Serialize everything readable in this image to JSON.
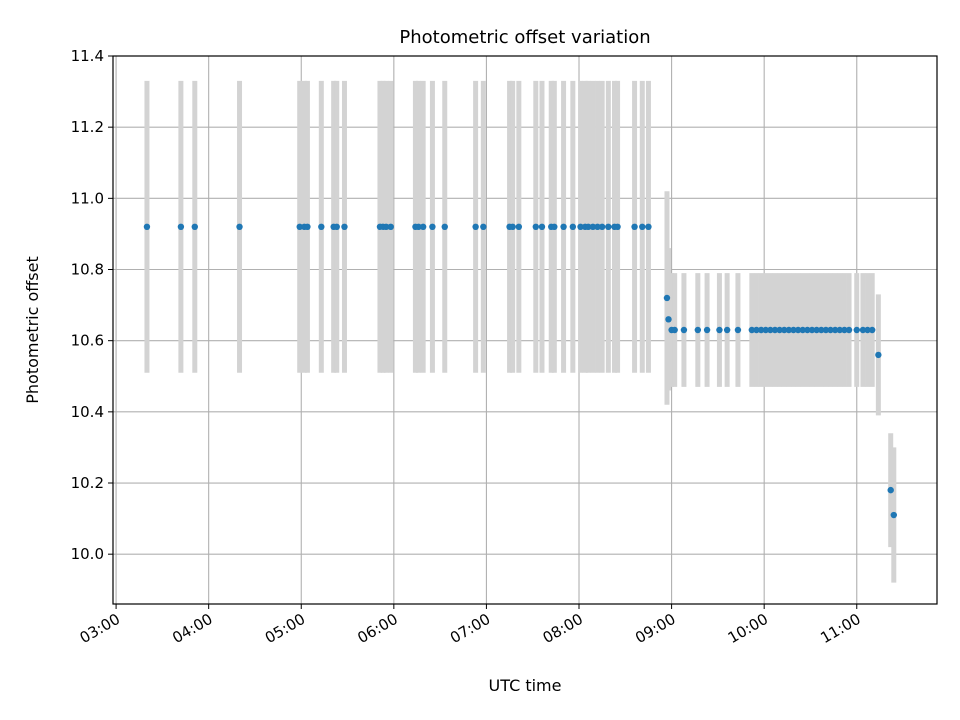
{
  "chart_data": {
    "type": "scatter",
    "title": "Photometric offset variation",
    "xlabel": "UTC time",
    "ylabel": "Photometric offset",
    "x_unit": "UTC time (HH:MM)",
    "xlim": [
      "02:58",
      "11:52"
    ],
    "ylim": [
      9.86,
      11.4
    ],
    "grid": true,
    "colors": {
      "points": "#1f77b4",
      "errorbars": "#d3d3d3",
      "grid": "#b0b0b0"
    },
    "x_ticks": [
      "03:00",
      "04:00",
      "05:00",
      "06:00",
      "07:00",
      "08:00",
      "09:00",
      "10:00",
      "11:00"
    ],
    "y_ticks": [
      "10.0",
      "10.2",
      "10.4",
      "10.6",
      "10.8",
      "11.0",
      "11.2",
      "11.4"
    ],
    "series": [
      {
        "x": [
          "03:20",
          "03:42",
          "03:51",
          "04:20",
          "04:59",
          "05:02",
          "05:04",
          "05:13",
          "05:21",
          "05:23",
          "05:28",
          "05:51",
          "05:53",
          "05:55",
          "05:58",
          "06:14",
          "06:16",
          "06:19",
          "06:25",
          "06:33",
          "06:53",
          "06:58",
          "07:15",
          "07:17",
          "07:21",
          "07:32",
          "07:36",
          "07:42",
          "07:44",
          "07:50",
          "07:56",
          "08:01",
          "08:04",
          "08:06",
          "08:09",
          "08:12",
          "08:15",
          "08:19",
          "08:23",
          "08:25",
          "08:36",
          "08:41",
          "08:45",
          "08:57",
          "08:58",
          "09:00",
          "09:02",
          "09:08",
          "09:17",
          "09:23",
          "09:31",
          "09:36",
          "09:43",
          "09:52",
          "09:55",
          "09:58",
          "10:01",
          "10:04",
          "10:07",
          "10:10",
          "10:13",
          "10:16",
          "10:19",
          "10:22",
          "10:25",
          "10:28",
          "10:31",
          "10:34",
          "10:37",
          "10:40",
          "10:43",
          "10:46",
          "10:49",
          "10:52",
          "10:55",
          "11:00",
          "11:04",
          "11:07",
          "11:10",
          "11:14",
          "11:22",
          "11:24"
        ],
        "y": [
          10.92,
          10.92,
          10.92,
          10.92,
          10.92,
          10.92,
          10.92,
          10.92,
          10.92,
          10.92,
          10.92,
          10.92,
          10.92,
          10.92,
          10.92,
          10.92,
          10.92,
          10.92,
          10.92,
          10.92,
          10.92,
          10.92,
          10.92,
          10.92,
          10.92,
          10.92,
          10.92,
          10.92,
          10.92,
          10.92,
          10.92,
          10.92,
          10.92,
          10.92,
          10.92,
          10.92,
          10.92,
          10.92,
          10.92,
          10.92,
          10.92,
          10.92,
          10.92,
          10.72,
          10.66,
          10.63,
          10.63,
          10.63,
          10.63,
          10.63,
          10.63,
          10.63,
          10.63,
          10.63,
          10.63,
          10.63,
          10.63,
          10.63,
          10.63,
          10.63,
          10.63,
          10.63,
          10.63,
          10.63,
          10.63,
          10.63,
          10.63,
          10.63,
          10.63,
          10.63,
          10.63,
          10.63,
          10.63,
          10.63,
          10.63,
          10.63,
          10.63,
          10.63,
          10.63,
          10.56,
          10.18,
          10.11
        ],
        "err": [
          0.41,
          0.41,
          0.41,
          0.41,
          0.41,
          0.41,
          0.41,
          0.41,
          0.41,
          0.41,
          0.41,
          0.41,
          0.41,
          0.41,
          0.41,
          0.41,
          0.41,
          0.41,
          0.41,
          0.41,
          0.41,
          0.41,
          0.41,
          0.41,
          0.41,
          0.41,
          0.41,
          0.41,
          0.41,
          0.41,
          0.41,
          0.41,
          0.41,
          0.41,
          0.41,
          0.41,
          0.41,
          0.41,
          0.41,
          0.41,
          0.41,
          0.41,
          0.41,
          0.3,
          0.2,
          0.16,
          0.16,
          0.16,
          0.16,
          0.16,
          0.16,
          0.16,
          0.16,
          0.16,
          0.16,
          0.16,
          0.16,
          0.16,
          0.16,
          0.16,
          0.16,
          0.16,
          0.16,
          0.16,
          0.16,
          0.16,
          0.16,
          0.16,
          0.16,
          0.16,
          0.16,
          0.16,
          0.16,
          0.16,
          0.16,
          0.16,
          0.16,
          0.16,
          0.16,
          0.17,
          0.16,
          0.19
        ]
      }
    ]
  }
}
